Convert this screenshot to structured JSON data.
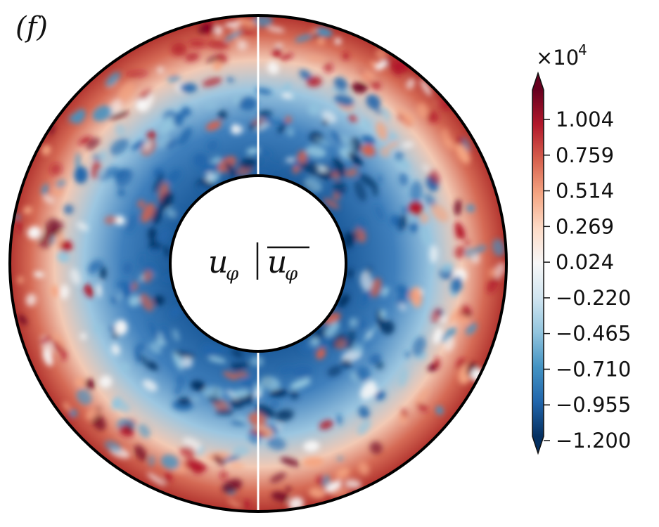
{
  "panel_label": "(f)",
  "center_label": {
    "left_symbol": "u",
    "left_subscript": "φ",
    "separator": "|",
    "right_symbol": "u",
    "right_subscript": "φ"
  },
  "colorbar": {
    "exponent_prefix": "×10",
    "exponent_power": "4",
    "ticks": [
      "1.004",
      "0.759",
      "0.514",
      "0.269",
      "0.024",
      "−0.220",
      "−0.465",
      "−0.710",
      "−0.955",
      "−1.200"
    ],
    "colormap": [
      "#053061",
      "#2166ac",
      "#4393c3",
      "#92c5de",
      "#d1e5f0",
      "#f7f7f7",
      "#fddbc7",
      "#f4a582",
      "#d6604d",
      "#b2182b",
      "#67001f"
    ],
    "extend_colors": {
      "top": "#67001f",
      "bottom": "#053061"
    }
  },
  "field_image": {
    "description_colors": {
      "negative_deep": "#053061",
      "positive_deep": "#67001f",
      "neutral": "#f7f7f7"
    }
  }
}
